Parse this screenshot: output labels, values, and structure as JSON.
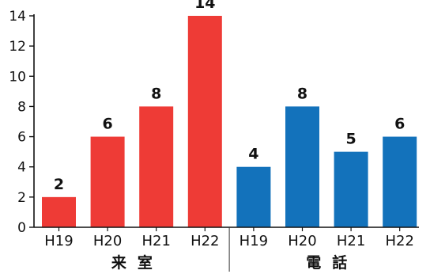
{
  "chart_data": {
    "type": "bar",
    "ylim": [
      0,
      14
    ],
    "yticks": [
      0,
      2,
      4,
      6,
      8,
      10,
      12,
      14
    ],
    "grid": false,
    "legend": "none",
    "groups": [
      {
        "label": "来室",
        "color": "#ee3b36",
        "categories": [
          "H19",
          "H20",
          "H21",
          "H22"
        ],
        "values": [
          2,
          6,
          8,
          14
        ]
      },
      {
        "label": "電話",
        "color": "#1372bb",
        "categories": [
          "H19",
          "H20",
          "H21",
          "H22"
        ],
        "values": [
          4,
          8,
          5,
          6
        ]
      }
    ]
  }
}
